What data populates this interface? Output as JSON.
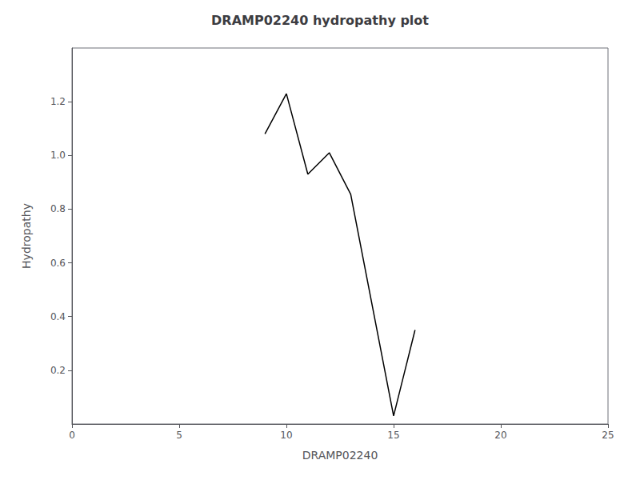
{
  "chart_data": {
    "type": "line",
    "title": "DRAMP02240 hydropathy plot",
    "xlabel": "DRAMP02240",
    "ylabel": "Hydropathy",
    "x": [
      9,
      10,
      11,
      12,
      13,
      15,
      16
    ],
    "values": [
      1.08,
      1.23,
      0.93,
      1.01,
      0.855,
      0.03,
      0.35
    ],
    "color": "black",
    "xlim": [
      0,
      25
    ],
    "ylim": [
      0,
      1.4
    ],
    "xticks": [
      0,
      5,
      10,
      15,
      20,
      25
    ],
    "yticks": [
      0.2,
      0.4,
      0.6,
      0.8,
      {
        "value": 1.0,
        "label": "1.0"
      },
      1.2
    ],
    "grid": false
  }
}
